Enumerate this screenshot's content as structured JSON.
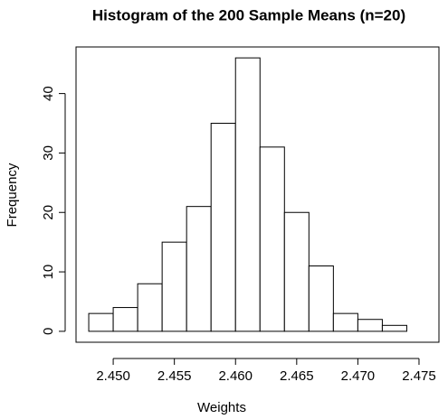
{
  "chart_data": {
    "type": "histogram",
    "title": "Histogram of the 200 Sample Means (n=20)",
    "x_label": "Weights",
    "y_label": "Frequency",
    "bins": [
      2.448,
      2.45,
      2.452,
      2.454,
      2.456,
      2.458,
      2.46,
      2.462,
      2.464,
      2.466,
      2.468,
      2.47,
      2.472,
      2.474
    ],
    "values": [
      3,
      4,
      8,
      15,
      21,
      35,
      46,
      31,
      20,
      11,
      3,
      2,
      1
    ],
    "color": "#ffffff",
    "xlim": [
      2.44696,
      2.47663
    ],
    "xticks": [
      {
        "value": 2.45,
        "label": "2.450"
      },
      {
        "value": 2.455,
        "label": "2.455"
      },
      {
        "value": 2.46,
        "label": "2.460"
      },
      {
        "value": 2.465,
        "label": "2.465"
      },
      {
        "value": 2.47,
        "label": "2.470"
      },
      {
        "value": 2.475,
        "label": "2.475"
      }
    ],
    "ylim": [
      -1.84,
      47.84
    ],
    "yticks": [
      0,
      10,
      20,
      30,
      40
    ]
  }
}
